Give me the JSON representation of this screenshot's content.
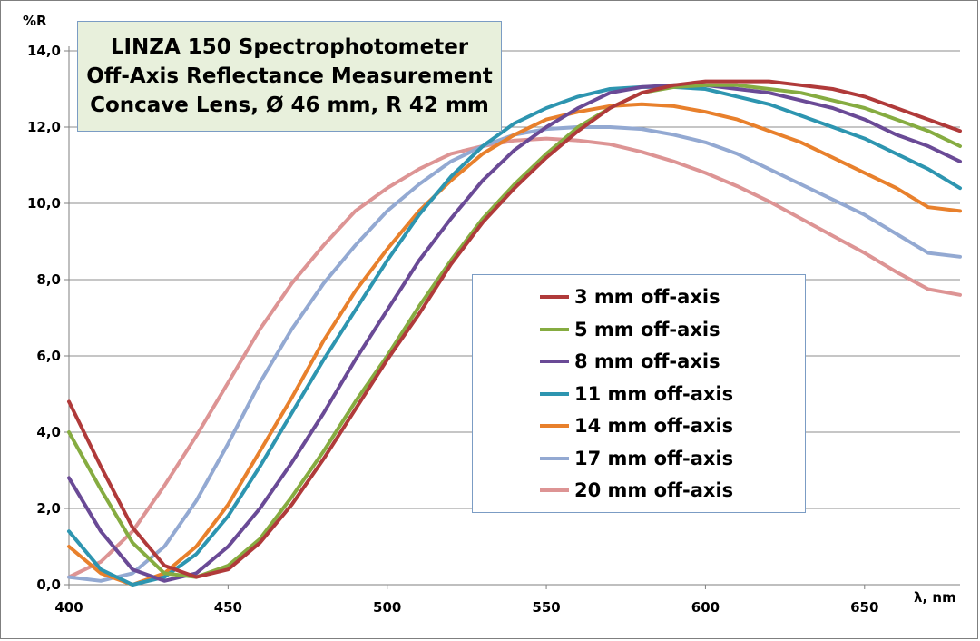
{
  "chart_data": {
    "type": "line",
    "title_lines": [
      "LINZA 150 Spectrophotometer",
      "Off-Axis Reflectance Measurement",
      "Concave Lens, Ø 46 mm, R 42 mm"
    ],
    "xlabel": "λ, nm",
    "ylabel": "%R",
    "xlim": [
      400,
      680
    ],
    "ylim": [
      0,
      14
    ],
    "x_ticks": [
      400,
      450,
      500,
      550,
      600,
      650
    ],
    "x_tick_labels": [
      "400",
      "450",
      "500",
      "550",
      "600",
      "650"
    ],
    "y_ticks": [
      0,
      2,
      4,
      6,
      8,
      10,
      12,
      14
    ],
    "y_tick_labels": [
      "0,0",
      "2,0",
      "4,0",
      "6,0",
      "8,0",
      "10,0",
      "12,0",
      "14,0"
    ],
    "grid": "horizontal",
    "legend_position": "center-right",
    "series": [
      {
        "name": "3 mm off-axis",
        "color": "#b03a3a",
        "x": [
          400,
          410,
          420,
          430,
          440,
          450,
          460,
          470,
          480,
          490,
          500,
          510,
          520,
          530,
          540,
          550,
          560,
          570,
          580,
          590,
          600,
          610,
          620,
          630,
          640,
          650,
          660,
          670,
          680
        ],
        "y": [
          4.8,
          3.1,
          1.5,
          0.5,
          0.2,
          0.4,
          1.1,
          2.1,
          3.3,
          4.6,
          5.9,
          7.1,
          8.4,
          9.5,
          10.4,
          11.2,
          11.9,
          12.5,
          12.9,
          13.1,
          13.2,
          13.2,
          13.2,
          13.1,
          13.0,
          12.8,
          12.5,
          12.2,
          11.9
        ]
      },
      {
        "name": "5 mm off-axis",
        "color": "#86ac41",
        "x": [
          400,
          410,
          420,
          430,
          440,
          450,
          460,
          470,
          480,
          490,
          500,
          510,
          520,
          530,
          540,
          550,
          560,
          570,
          580,
          590,
          600,
          610,
          620,
          630,
          640,
          650,
          660,
          670,
          680
        ],
        "y": [
          4.0,
          2.5,
          1.1,
          0.3,
          0.2,
          0.5,
          1.2,
          2.3,
          3.5,
          4.8,
          6.0,
          7.3,
          8.5,
          9.6,
          10.5,
          11.3,
          12.0,
          12.5,
          12.9,
          13.05,
          13.1,
          13.1,
          13.0,
          12.9,
          12.7,
          12.5,
          12.2,
          11.9,
          11.5
        ]
      },
      {
        "name": "8 mm off-axis",
        "color": "#6a4a96",
        "x": [
          400,
          410,
          420,
          430,
          440,
          450,
          460,
          470,
          480,
          490,
          500,
          510,
          520,
          530,
          540,
          550,
          560,
          570,
          580,
          590,
          600,
          610,
          620,
          630,
          640,
          650,
          660,
          670,
          680
        ],
        "y": [
          2.8,
          1.4,
          0.4,
          0.1,
          0.3,
          1.0,
          2.0,
          3.2,
          4.5,
          5.9,
          7.2,
          8.5,
          9.6,
          10.6,
          11.4,
          12.0,
          12.5,
          12.9,
          13.05,
          13.1,
          13.1,
          13.0,
          12.9,
          12.7,
          12.5,
          12.2,
          11.8,
          11.5,
          11.1
        ]
      },
      {
        "name": "11 mm off-axis",
        "color": "#2d95b0",
        "x": [
          400,
          410,
          420,
          430,
          440,
          450,
          460,
          470,
          480,
          490,
          500,
          510,
          520,
          530,
          540,
          550,
          560,
          570,
          580,
          590,
          600,
          610,
          620,
          630,
          640,
          650,
          660,
          670,
          680
        ],
        "y": [
          1.4,
          0.4,
          0.0,
          0.2,
          0.8,
          1.8,
          3.1,
          4.5,
          5.9,
          7.2,
          8.5,
          9.7,
          10.7,
          11.5,
          12.1,
          12.5,
          12.8,
          13.0,
          13.05,
          13.05,
          13.0,
          12.8,
          12.6,
          12.3,
          12.0,
          11.7,
          11.3,
          10.9,
          10.4
        ]
      },
      {
        "name": "14 mm off-axis",
        "color": "#e8802c",
        "x": [
          400,
          410,
          420,
          430,
          440,
          450,
          460,
          470,
          480,
          490,
          500,
          510,
          520,
          530,
          540,
          550,
          560,
          570,
          580,
          590,
          600,
          610,
          620,
          630,
          640,
          650,
          660,
          670,
          680
        ],
        "y": [
          1.0,
          0.3,
          0.0,
          0.3,
          1.0,
          2.1,
          3.5,
          4.9,
          6.4,
          7.7,
          8.8,
          9.8,
          10.6,
          11.3,
          11.8,
          12.2,
          12.4,
          12.55,
          12.6,
          12.55,
          12.4,
          12.2,
          11.9,
          11.6,
          11.2,
          10.8,
          10.4,
          9.9,
          9.8
        ]
      },
      {
        "name": "17 mm off-axis",
        "color": "#93a9d2",
        "x": [
          400,
          410,
          420,
          430,
          440,
          450,
          460,
          470,
          480,
          490,
          500,
          510,
          520,
          530,
          540,
          550,
          560,
          570,
          580,
          590,
          600,
          610,
          620,
          630,
          640,
          650,
          660,
          670,
          680
        ],
        "y": [
          0.2,
          0.1,
          0.3,
          1.0,
          2.2,
          3.7,
          5.3,
          6.7,
          7.9,
          8.9,
          9.8,
          10.5,
          11.1,
          11.5,
          11.8,
          11.95,
          12.0,
          12.0,
          11.95,
          11.8,
          11.6,
          11.3,
          10.9,
          10.5,
          10.1,
          9.7,
          9.2,
          8.7,
          8.6
        ]
      },
      {
        "name": "20 mm off-axis",
        "color": "#dd9494",
        "x": [
          400,
          410,
          420,
          430,
          440,
          450,
          460,
          470,
          480,
          490,
          500,
          510,
          520,
          530,
          540,
          550,
          560,
          570,
          580,
          590,
          600,
          610,
          620,
          630,
          640,
          650,
          660,
          670,
          680
        ],
        "y": [
          0.2,
          0.6,
          1.4,
          2.6,
          3.9,
          5.3,
          6.7,
          7.9,
          8.9,
          9.8,
          10.4,
          10.9,
          11.3,
          11.5,
          11.65,
          11.7,
          11.65,
          11.55,
          11.35,
          11.1,
          10.8,
          10.45,
          10.05,
          9.6,
          9.15,
          8.7,
          8.2,
          7.75,
          7.6
        ]
      }
    ]
  }
}
